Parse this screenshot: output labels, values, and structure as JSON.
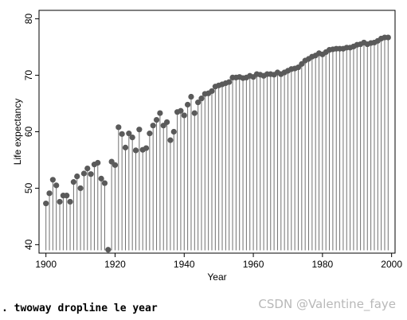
{
  "chart_data": {
    "type": "dropline",
    "xlabel": "Year",
    "ylabel": "Life expectancy",
    "xlim": [
      1898,
      2001
    ],
    "ylim": [
      38.5,
      81.5
    ],
    "xticks": [
      1900,
      1920,
      1940,
      1960,
      1980,
      2000
    ],
    "yticks": [
      40,
      50,
      60,
      70,
      80
    ],
    "base": 39,
    "grid": false,
    "colors": {
      "marker": "#5a5a5a",
      "line": "#707070",
      "plot_bg": "#ffffff"
    },
    "x": [
      1900,
      1901,
      1902,
      1903,
      1904,
      1905,
      1906,
      1907,
      1908,
      1909,
      1910,
      1911,
      1912,
      1913,
      1914,
      1915,
      1916,
      1917,
      1918,
      1919,
      1920,
      1921,
      1922,
      1923,
      1924,
      1925,
      1926,
      1927,
      1928,
      1929,
      1930,
      1931,
      1932,
      1933,
      1934,
      1935,
      1936,
      1937,
      1938,
      1939,
      1940,
      1941,
      1942,
      1943,
      1944,
      1945,
      1946,
      1947,
      1948,
      1949,
      1950,
      1951,
      1952,
      1953,
      1954,
      1955,
      1956,
      1957,
      1958,
      1959,
      1960,
      1961,
      1962,
      1963,
      1964,
      1965,
      1966,
      1967,
      1968,
      1969,
      1970,
      1971,
      1972,
      1973,
      1974,
      1975,
      1976,
      1977,
      1978,
      1979,
      1980,
      1981,
      1982,
      1983,
      1984,
      1985,
      1986,
      1987,
      1988,
      1989,
      1990,
      1991,
      1992,
      1993,
      1994,
      1995,
      1996,
      1997,
      1998,
      1999
    ],
    "y": [
      47.3,
      49.1,
      51.5,
      50.5,
      47.6,
      48.7,
      48.7,
      47.6,
      51.1,
      52.1,
      50.0,
      52.6,
      53.5,
      52.5,
      54.2,
      54.5,
      51.7,
      50.9,
      39.1,
      54.7,
      54.1,
      60.8,
      59.6,
      57.2,
      59.7,
      59.0,
      56.7,
      60.4,
      56.8,
      57.1,
      59.7,
      61.1,
      62.1,
      63.3,
      61.1,
      61.7,
      58.5,
      60.0,
      63.5,
      63.7,
      62.9,
      64.8,
      66.2,
      63.3,
      65.2,
      65.9,
      66.7,
      66.8,
      67.2,
      68.0,
      68.2,
      68.4,
      68.6,
      68.8,
      69.6,
      69.6,
      69.7,
      69.5,
      69.6,
      69.9,
      69.7,
      70.2,
      70.1,
      69.9,
      70.2,
      70.2,
      70.1,
      70.5,
      70.2,
      70.5,
      70.8,
      71.1,
      71.2,
      71.4,
      72.0,
      72.6,
      72.9,
      73.3,
      73.5,
      73.9,
      73.7,
      74.1,
      74.5,
      74.6,
      74.7,
      74.7,
      74.7,
      74.9,
      74.9,
      75.1,
      75.4,
      75.5,
      75.8,
      75.5,
      75.7,
      75.8,
      76.1,
      76.5,
      76.7,
      76.7
    ]
  },
  "command": ". twoway dropline le year",
  "watermark": "CSDN @Valentine_faye"
}
